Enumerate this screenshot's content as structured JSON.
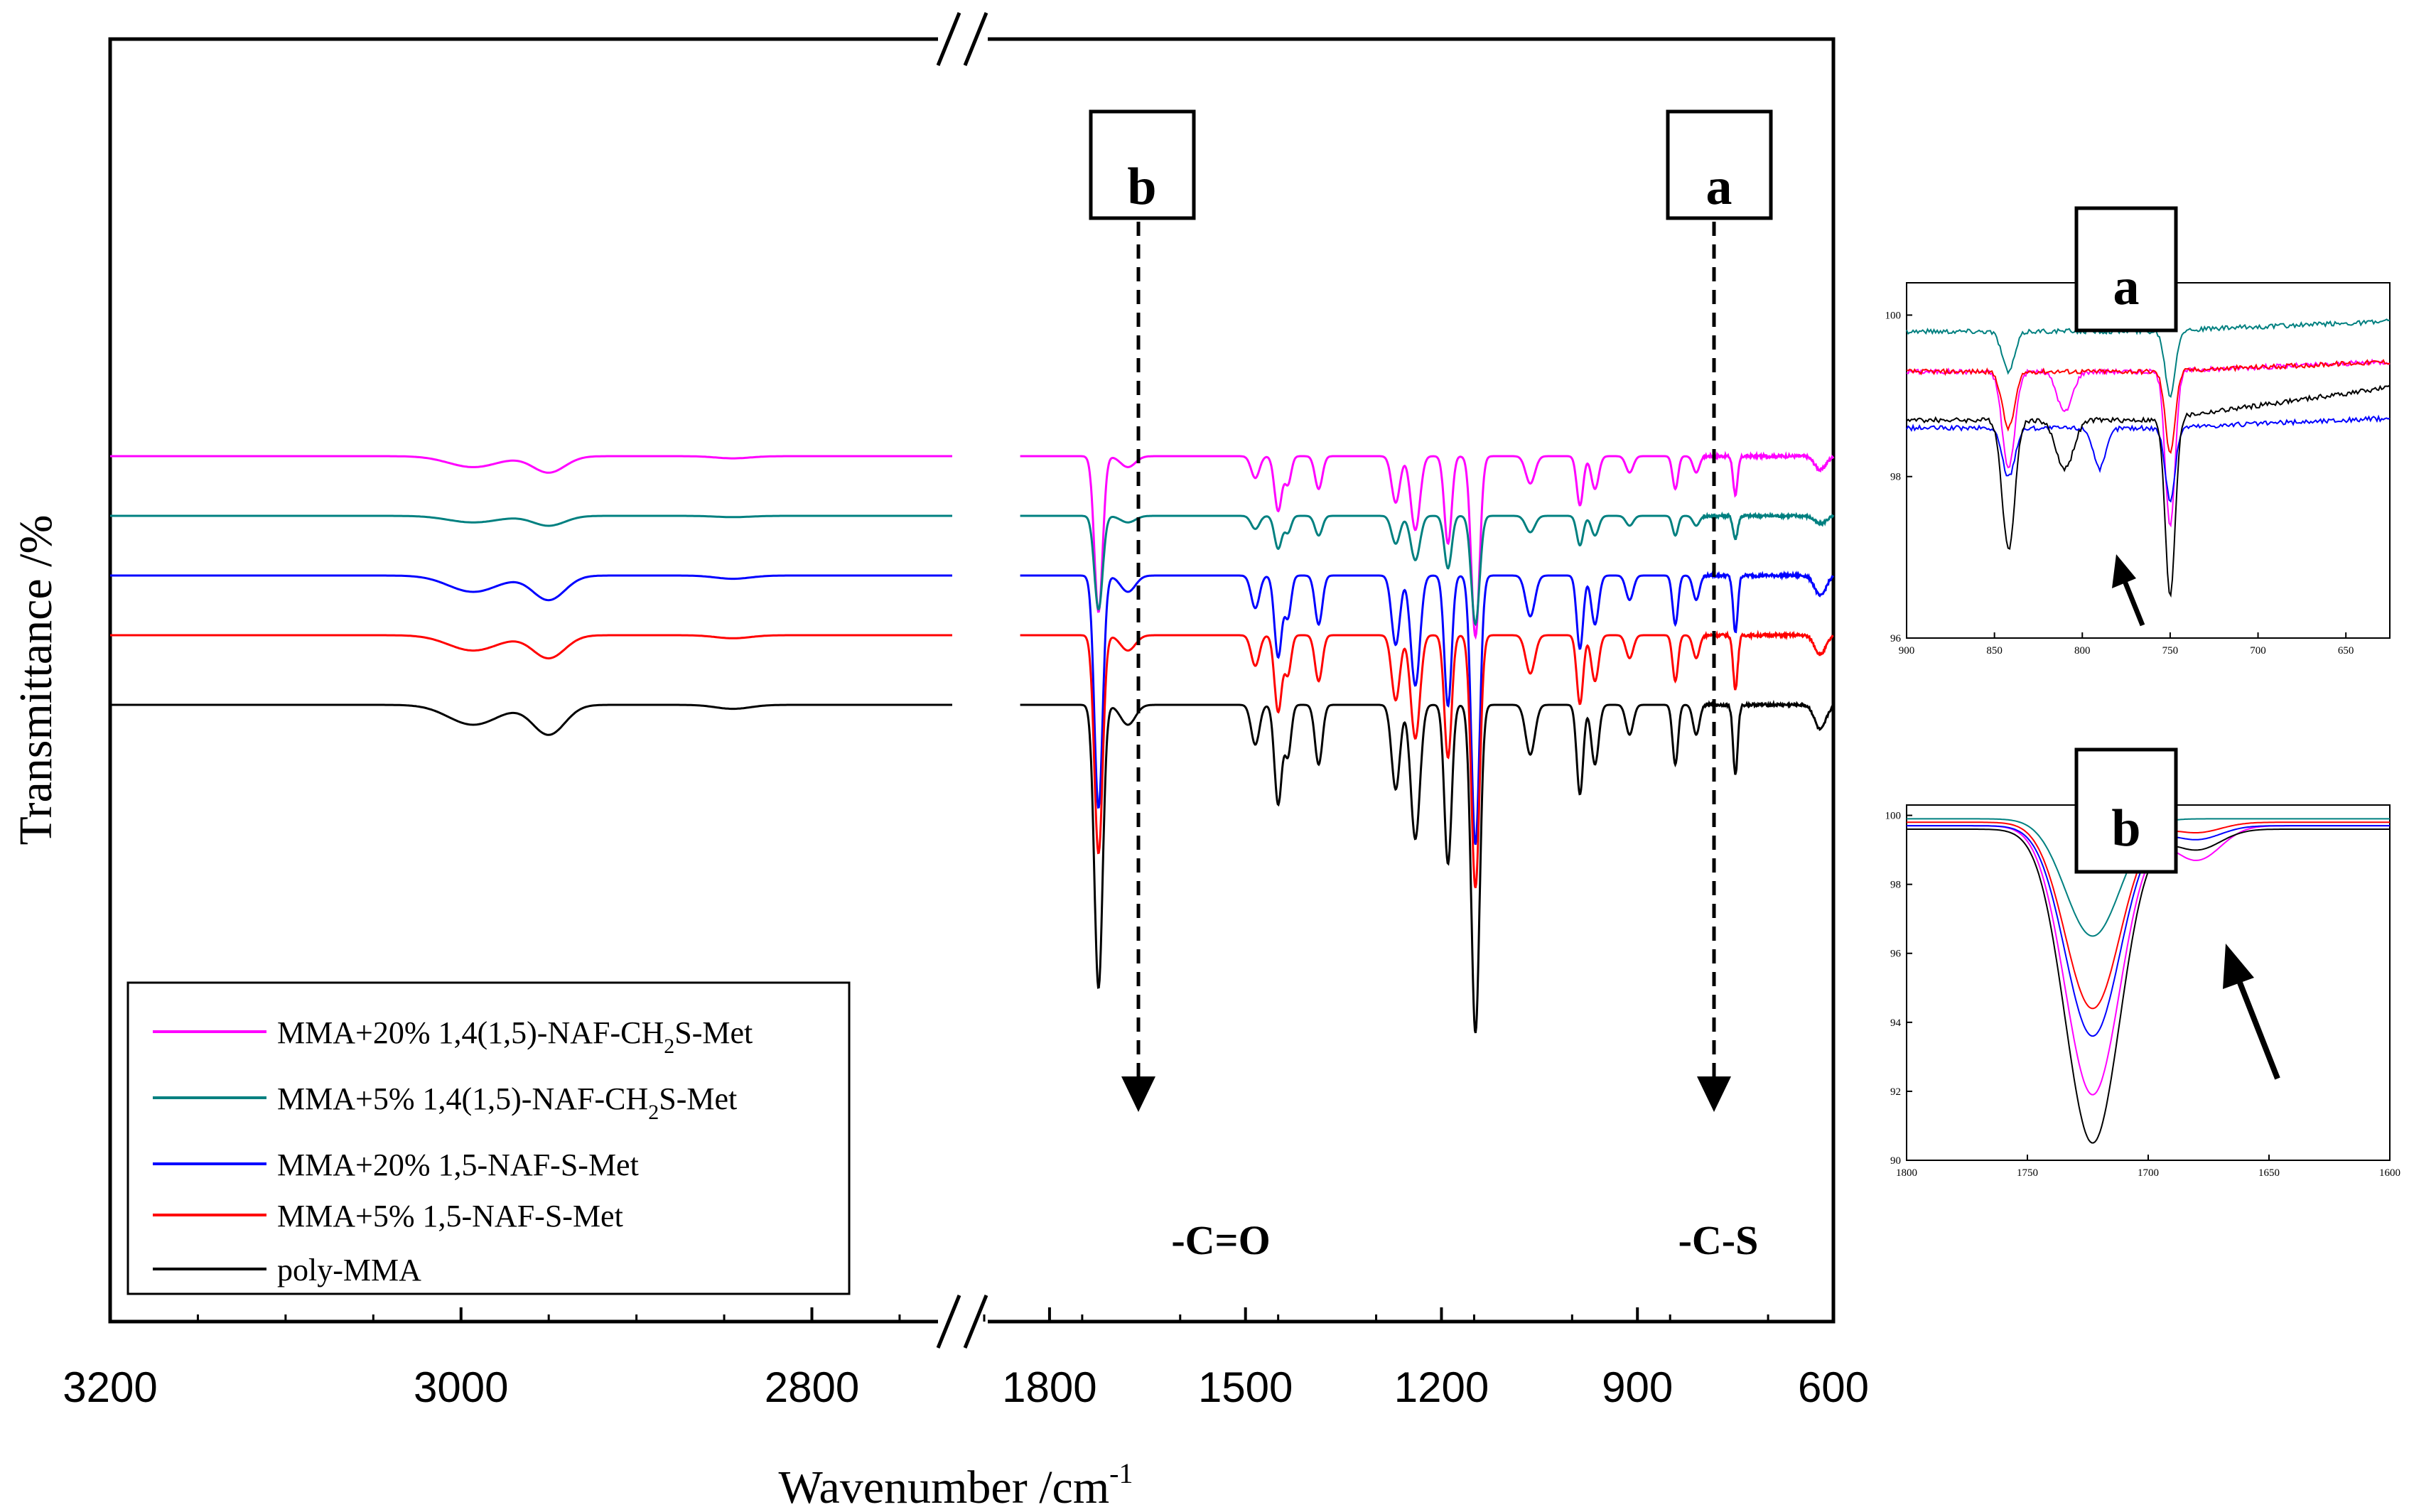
{
  "chart_data": [
    {
      "type": "line",
      "title": "",
      "xlabel": "Wavenumber /cm",
      "xlabel_sup": "-1",
      "ylabel": "Transmittance /%",
      "x_axis_broken": true,
      "segments": [
        {
          "xlim": [
            3200,
            2720
          ],
          "ticks": [
            "3200",
            "3000",
            "2800"
          ],
          "tick_values": [
            3200,
            3000,
            2800
          ]
        },
        {
          "xlim": [
            1900,
            600
          ],
          "ticks": [
            "1800",
            "1500",
            "1200",
            "900",
            "600"
          ],
          "tick_values": [
            1800,
            1500,
            1200,
            900,
            600
          ]
        }
      ],
      "legend": {
        "position": "lower-left",
        "entries": [
          {
            "pre": "MMA+20% 1,4(1,5)-NAF-CH",
            "sub": "2",
            "post": "S-Met",
            "color": "#ff00ff"
          },
          {
            "pre": "MMA+5% 1,4(1,5)-NAF-CH",
            "sub": "2",
            "post": "S-Met",
            "color": "#008080"
          },
          {
            "pre": "MMA+20% 1,5-NAF-S-Met",
            "sub": "",
            "post": "",
            "color": "#0000ff"
          },
          {
            "pre": "MMA+5% 1,5-NAF-S-Met",
            "sub": "",
            "post": "",
            "color": "#ff0000"
          },
          {
            "pre": "poly-MMA",
            "sub": "",
            "post": "",
            "color": "#000000"
          }
        ]
      },
      "markers": [
        {
          "label": "b",
          "wavenumber": 1650,
          "annotation": "-C=O"
        },
        {
          "label": "a",
          "wavenumber": 770,
          "annotation": "-C-S"
        }
      ],
      "series": [
        {
          "name": "MMA+20% 1,4(1,5)-NAF-CH2S-Met",
          "color": "#ff00ff",
          "offset": 50,
          "depth": 0.55
        },
        {
          "name": "MMA+5% 1,4(1,5)-NAF-CH2S-Met",
          "color": "#008080",
          "offset": 38,
          "depth": 0.33
        },
        {
          "name": "MMA+20% 1,5-NAF-S-Met",
          "color": "#0000ff",
          "offset": 26,
          "depth": 0.82
        },
        {
          "name": "MMA+5% 1,5-NAF-S-Met",
          "color": "#ff0000",
          "offset": 14,
          "depth": 0.77
        },
        {
          "name": "poly-MMA",
          "color": "#000000",
          "offset": 0,
          "depth": 1.0
        }
      ],
      "peaks": [
        {
          "x": 2993,
          "w": 20,
          "a": 4
        },
        {
          "x": 2950,
          "w": 13,
          "a": 6
        },
        {
          "x": 2845,
          "w": 14,
          "a": 0.8
        },
        {
          "x": 1725,
          "w": 9,
          "a": 57
        },
        {
          "x": 1680,
          "w": 16,
          "a": 4
        },
        {
          "x": 1485,
          "w": 9,
          "a": 8
        },
        {
          "x": 1450,
          "w": 8,
          "a": 20
        },
        {
          "x": 1435,
          "w": 7,
          "a": 10
        },
        {
          "x": 1388,
          "w": 8,
          "a": 12
        },
        {
          "x": 1270,
          "w": 9,
          "a": 17
        },
        {
          "x": 1240,
          "w": 10,
          "a": 27
        },
        {
          "x": 1190,
          "w": 8,
          "a": 32
        },
        {
          "x": 1148,
          "w": 9,
          "a": 66
        },
        {
          "x": 1064,
          "w": 10,
          "a": 10
        },
        {
          "x": 988,
          "w": 7,
          "a": 18
        },
        {
          "x": 965,
          "w": 8,
          "a": 12
        },
        {
          "x": 912,
          "w": 8,
          "a": 6
        },
        {
          "x": 842,
          "w": 6,
          "a": 12
        },
        {
          "x": 810,
          "w": 7,
          "a": 6
        },
        {
          "x": 750,
          "w": 5,
          "a": 14
        },
        {
          "x": 620,
          "w": 12,
          "a": 5
        }
      ]
    },
    {
      "type": "line",
      "title": "a",
      "xlim": [
        900,
        625
      ],
      "ylim": [
        96,
        100.4
      ],
      "x_ticks": [
        "900",
        "850",
        "800",
        "750",
        "700",
        "650"
      ],
      "x_tick_values": [
        900,
        850,
        800,
        750,
        700,
        650
      ],
      "y_ticks": [
        "96",
        "98",
        "100"
      ],
      "y_tick_values": [
        96,
        98,
        100
      ],
      "arrow": "up",
      "series": [
        {
          "name": "MMA+20% 1,4(1,5)-NAF-CH2S-Met",
          "color": "#ff00ff",
          "base": 99.3,
          "peaks": [
            {
              "x": 842,
              "w": 5,
              "a": 1.2
            },
            {
              "x": 810,
              "w": 6,
              "a": 0.5
            },
            {
              "x": 750,
              "w": 4,
              "a": 1.9
            }
          ]
        },
        {
          "name": "MMA+5% 1,4(1,5)-NAF-CH2S-Met",
          "color": "#008080",
          "base": 99.8,
          "peaks": [
            {
              "x": 842,
              "w": 5,
              "a": 0.5
            },
            {
              "x": 750,
              "w": 4,
              "a": 0.8
            }
          ]
        },
        {
          "name": "MMA+20% 1,5-NAF-S-Met",
          "color": "#0000ff",
          "base": 98.6,
          "peaks": [
            {
              "x": 842,
              "w": 5,
              "a": 0.6
            },
            {
              "x": 790,
              "w": 5,
              "a": 0.5
            },
            {
              "x": 750,
              "w": 4,
              "a": 0.9
            }
          ]
        },
        {
          "name": "MMA+5% 1,5-NAF-S-Met",
          "color": "#ff0000",
          "base": 99.3,
          "peaks": [
            {
              "x": 842,
              "w": 5,
              "a": 0.7
            },
            {
              "x": 750,
              "w": 4,
              "a": 1.0
            }
          ]
        },
        {
          "name": "poly-MMA",
          "color": "#000000",
          "base": 98.7,
          "peaks": [
            {
              "x": 842,
              "w": 5,
              "a": 1.6
            },
            {
              "x": 810,
              "w": 7,
              "a": 0.6
            },
            {
              "x": 750,
              "w": 4,
              "a": 2.2
            }
          ]
        }
      ]
    },
    {
      "type": "line",
      "title": "b",
      "xlim": [
        1800,
        1600
      ],
      "ylim": [
        90,
        100.3
      ],
      "x_ticks": [
        "1800",
        "1750",
        "1700",
        "1650",
        "1600"
      ],
      "x_tick_values": [
        1800,
        1750,
        1700,
        1650,
        1600
      ],
      "y_ticks": [
        "90",
        "92",
        "94",
        "96",
        "98",
        "100"
      ],
      "y_tick_values": [
        90,
        92,
        94,
        96,
        98,
        100
      ],
      "arrow": "up",
      "series": [
        {
          "name": "MMA+20% 1,4(1,5)-NAF-CH2S-Met",
          "color": "#ff00ff",
          "base": 99.7,
          "min": 91.9,
          "shoulder": 1.0
        },
        {
          "name": "MMA+5% 1,4(1,5)-NAF-CH2S-Met",
          "color": "#008080",
          "base": 99.9,
          "min": 96.5,
          "shoulder": 0.0
        },
        {
          "name": "MMA+20% 1,5-NAF-S-Met",
          "color": "#0000ff",
          "base": 99.7,
          "min": 93.6,
          "shoulder": 0.4
        },
        {
          "name": "MMA+5% 1,5-NAF-S-Met",
          "color": "#ff0000",
          "base": 99.8,
          "min": 94.4,
          "shoulder": 0.3
        },
        {
          "name": "poly-MMA",
          "color": "#000000",
          "base": 99.6,
          "min": 90.5,
          "shoulder": 0.6
        }
      ]
    }
  ]
}
